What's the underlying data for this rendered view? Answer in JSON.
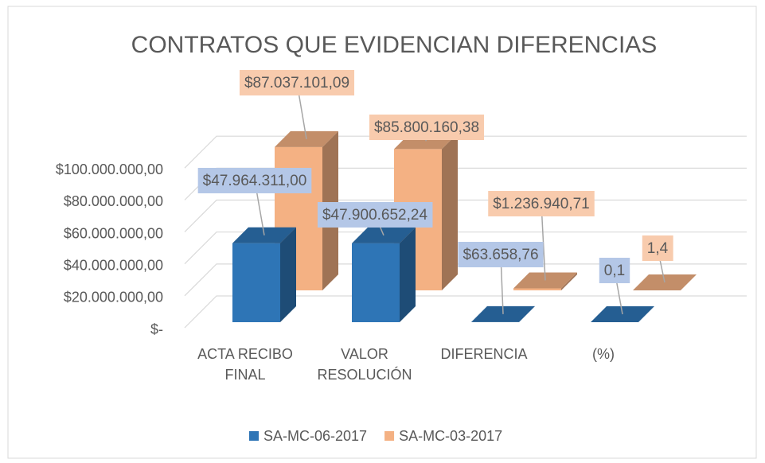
{
  "chart_data": {
    "type": "bar3d",
    "title": "CONTRATOS QUE EVIDENCIAN DIFERENCIAS",
    "categories": [
      "ACTA RECIBO FINAL",
      "VALOR RESOLUCIÓN",
      "DIFERENCIA",
      "(%)"
    ],
    "series": [
      {
        "name": "SA-MC-06-2017",
        "color": "#2e75b6",
        "label_color": "#b4c7e7",
        "values": [
          47964311.0,
          47900652.24,
          63658.76,
          0.1
        ],
        "value_labels": [
          "$47.964.311,00",
          "$47.900.652,24",
          "$63.658,76",
          "0,1"
        ]
      },
      {
        "name": "SA-MC-03-2017",
        "color": "#f4b183",
        "label_color": "#f8cbad",
        "values": [
          87037101.09,
          85800160.38,
          1236940.71,
          1.4
        ],
        "value_labels": [
          "$87.037.101,09",
          "$85.800.160,38",
          "$1.236.940,71",
          "1,4"
        ]
      }
    ],
    "ylim": [
      0,
      100000000
    ],
    "yticks": [
      {
        "value": 0,
        "label": "$-"
      },
      {
        "value": 20000000,
        "label": "$20.000.000,00"
      },
      {
        "value": 40000000,
        "label": "$40.000.000,00"
      },
      {
        "value": 60000000,
        "label": "$60.000.000,00"
      },
      {
        "value": 80000000,
        "label": "$80.000.000,00"
      },
      {
        "value": 100000000,
        "label": "$100.000.000,00"
      }
    ],
    "grid": true,
    "legend": "bottom"
  }
}
